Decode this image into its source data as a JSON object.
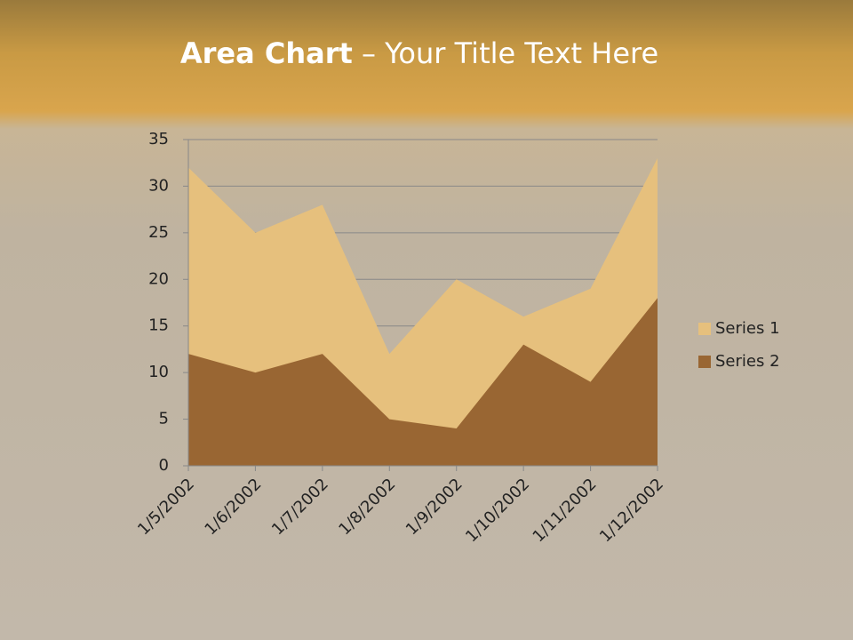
{
  "chart_data": {
    "type": "area",
    "title_bold": "Area Chart",
    "title_rest": " – Your Title Text Here",
    "categories": [
      "1/5/2002",
      "1/6/2002",
      "1/7/2002",
      "1/8/2002",
      "1/9/2002",
      "1/10/2002",
      "1/11/2002",
      "1/12/2002"
    ],
    "series": [
      {
        "name": "Series 1",
        "color": "#e6c07d",
        "values": [
          32,
          25,
          28,
          12,
          20,
          16,
          19,
          33
        ]
      },
      {
        "name": "Series 2",
        "color": "#996633",
        "values": [
          12,
          10,
          12,
          5,
          4,
          13,
          9,
          18
        ]
      }
    ],
    "ylim": [
      0,
      35
    ],
    "yticks": [
      0,
      5,
      10,
      15,
      20,
      25,
      30,
      35
    ],
    "grid": true,
    "legend": "right"
  }
}
